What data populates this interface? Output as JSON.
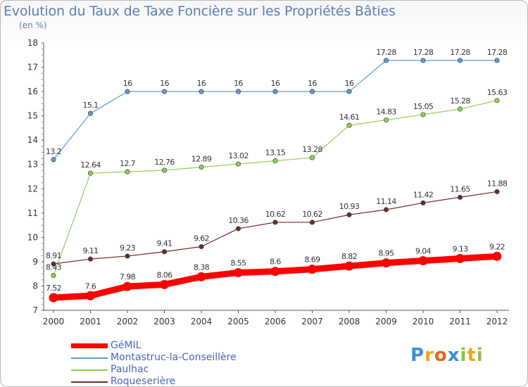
{
  "header": {
    "title": "Evolution du Taux de Taxe Foncière sur les Propriétés Bâties",
    "unit": "(en %)"
  },
  "chart_data": {
    "type": "line",
    "title": "Evolution du Taux de Taxe Foncière sur les Propriétés Bâties",
    "ylabel": "(en %)",
    "xlabel": "",
    "x": [
      "2000",
      "2001",
      "2002",
      "2003",
      "2004",
      "2005",
      "2006",
      "2007",
      "2008",
      "2009",
      "2010",
      "2011",
      "2012"
    ],
    "ylim": [
      7,
      18
    ],
    "yticks": [
      7,
      8,
      9,
      10,
      11,
      12,
      13,
      14,
      15,
      16,
      17,
      18
    ],
    "grid": false,
    "legend_position": "bottom-left",
    "series": [
      {
        "name": "GéMIL",
        "color": "#ff0000",
        "values": [
          7.52,
          7.6,
          7.98,
          8.06,
          8.38,
          8.55,
          8.6,
          8.69,
          8.82,
          8.95,
          9.04,
          9.13,
          9.22
        ],
        "labels": [
          "7.52",
          "7.6",
          "7.98",
          "8.06",
          "8.38",
          "8.55",
          "8.6",
          "8.69",
          "8.82",
          "8.95",
          "9.04",
          "9.13",
          "9.22"
        ]
      },
      {
        "name": "Montastruc-la-Conseillère",
        "color": "#5b9bd5",
        "values": [
          13.2,
          15.1,
          16,
          16,
          16,
          16,
          16,
          16,
          16,
          17.28,
          17.28,
          17.28,
          17.28
        ],
        "labels": [
          "13.2",
          "15.1",
          "16",
          "16",
          "16",
          "16",
          "16",
          "16",
          "16",
          "17.28",
          "17.28",
          "17.28",
          "17.28"
        ]
      },
      {
        "name": "Paulhac",
        "color": "#8fd14f",
        "values": [
          8.43,
          12.64,
          12.7,
          12.76,
          12.89,
          13.02,
          13.15,
          13.28,
          14.61,
          14.83,
          15.05,
          15.28,
          15.63
        ],
        "labels": [
          "8.43",
          "12.64",
          "12.7",
          "12.76",
          "12.89",
          "13.02",
          "13.15",
          "13.28",
          "14.61",
          "14.83",
          "15.05",
          "15.28",
          "15.63"
        ]
      },
      {
        "name": "Roqueserière",
        "color": "#6b2b2b",
        "values": [
          8.91,
          9.11,
          9.23,
          9.41,
          9.62,
          10.36,
          10.62,
          10.62,
          10.93,
          11.14,
          11.42,
          11.65,
          11.88
        ],
        "labels": [
          "8.91",
          "9.11",
          "9.23",
          "9.41",
          "9.62",
          "10.36",
          "10.62",
          "10.62",
          "10.93",
          "11.14",
          "11.42",
          "11.65",
          "11.88"
        ]
      }
    ]
  },
  "legend": {
    "items": [
      {
        "label": "GéMIL",
        "color": "#ff0000"
      },
      {
        "label": "Montastruc-la-Conseillère",
        "color": "#5b9bd5"
      },
      {
        "label": "Paulhac",
        "color": "#8fd14f"
      },
      {
        "label": "Roqueserière",
        "color": "#6b2b2b"
      }
    ]
  },
  "logo": {
    "text": "Proxiti",
    "letters": [
      "P",
      "r",
      "o",
      "x",
      "i",
      "t",
      "i"
    ],
    "letter_colors": [
      "#3b8fd6",
      "#f2a51a",
      "#e8641d",
      "#3b8fd6",
      "#8cc43f",
      "#f2a51a",
      "#8cc43f"
    ]
  }
}
